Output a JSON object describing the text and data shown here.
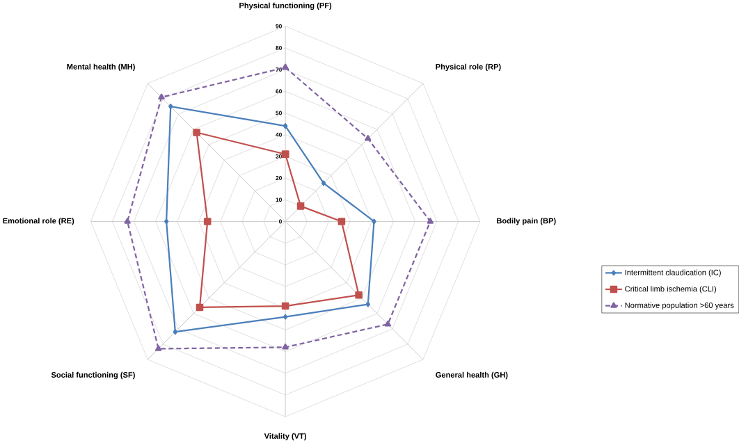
{
  "chart_data": {
    "type": "radar",
    "categories": [
      "Physical functioning (PF)",
      "Physical role (RP)",
      "Bodily pain (BP)",
      "General health (GH)",
      "Vitality (VT)",
      "Social functioning (SF)",
      "Emotional role (RE)",
      "Mental health (MH)"
    ],
    "series": [
      {
        "name": "Intermittent claudication (IC)",
        "color": "#4a7ebb",
        "marker": "diamond",
        "line_style": "solid",
        "values": [
          44,
          25,
          41,
          54,
          44,
          72,
          55,
          75
        ]
      },
      {
        "name": "Critical limb ischemia (CLI)",
        "color": "#c0504d",
        "marker": "square",
        "line_style": "solid",
        "values": [
          31,
          10,
          26,
          48,
          39,
          56,
          36,
          58
        ]
      },
      {
        "name": "Normative population >60 years",
        "color": "#8064a2",
        "marker": "triangle",
        "line_style": "dashed",
        "values": [
          71,
          54,
          67,
          67,
          58,
          83,
          73,
          81
        ]
      }
    ],
    "ylim": [
      0,
      90
    ],
    "yticks": [
      0,
      10,
      20,
      30,
      40,
      50,
      60,
      70,
      80,
      90
    ],
    "grid": true,
    "legend": "right"
  }
}
